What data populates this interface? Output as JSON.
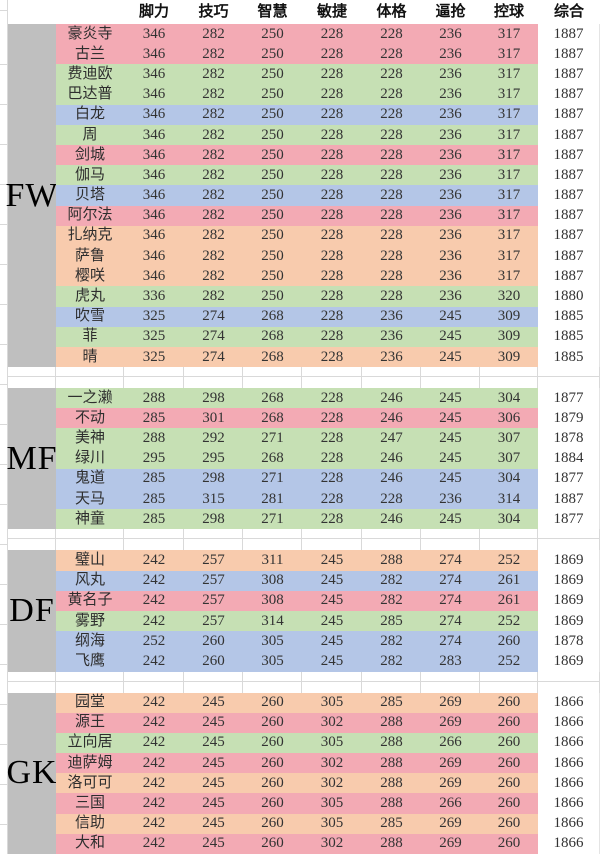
{
  "header": {
    "columns": [
      "脚力",
      "技巧",
      "智慧",
      "敏捷",
      "体格",
      "逼抢",
      "控球",
      "综合"
    ]
  },
  "colors": {
    "pink": "#f3aab4",
    "green": "#c6e0b4",
    "blue": "#b4c6e7",
    "orange": "#f8cbad",
    "gray": "#bfbfbf",
    "gridline": "#d9d9d9"
  },
  "sections": [
    {
      "label": "FW",
      "rows": [
        {
          "name": "豪炎寺",
          "color": "pink",
          "values": [
            346,
            282,
            250,
            228,
            228,
            236,
            317
          ],
          "total": 1887
        },
        {
          "name": "古兰",
          "color": "pink",
          "values": [
            346,
            282,
            250,
            228,
            228,
            236,
            317
          ],
          "total": 1887
        },
        {
          "name": "费迪欧",
          "color": "green",
          "values": [
            346,
            282,
            250,
            228,
            228,
            236,
            317
          ],
          "total": 1887
        },
        {
          "name": "巴达普",
          "color": "green",
          "values": [
            346,
            282,
            250,
            228,
            228,
            236,
            317
          ],
          "total": 1887
        },
        {
          "name": "白龙",
          "color": "blue",
          "values": [
            346,
            282,
            250,
            228,
            228,
            236,
            317
          ],
          "total": 1887
        },
        {
          "name": "周",
          "color": "green",
          "values": [
            346,
            282,
            250,
            228,
            228,
            236,
            317
          ],
          "total": 1887
        },
        {
          "name": "剑城",
          "color": "pink",
          "values": [
            346,
            282,
            250,
            228,
            228,
            236,
            317
          ],
          "total": 1887
        },
        {
          "name": "伽马",
          "color": "green",
          "values": [
            346,
            282,
            250,
            228,
            228,
            236,
            317
          ],
          "total": 1887
        },
        {
          "name": "贝塔",
          "color": "blue",
          "values": [
            346,
            282,
            250,
            228,
            228,
            236,
            317
          ],
          "total": 1887
        },
        {
          "name": "阿尔法",
          "color": "pink",
          "values": [
            346,
            282,
            250,
            228,
            228,
            236,
            317
          ],
          "total": 1887
        },
        {
          "name": "扎纳克",
          "color": "orange",
          "values": [
            346,
            282,
            250,
            228,
            228,
            236,
            317
          ],
          "total": 1887
        },
        {
          "name": "萨鲁",
          "color": "orange",
          "values": [
            346,
            282,
            250,
            228,
            228,
            236,
            317
          ],
          "total": 1887
        },
        {
          "name": "樱咲",
          "color": "orange",
          "values": [
            346,
            282,
            250,
            228,
            228,
            236,
            317
          ],
          "total": 1887
        },
        {
          "name": "虎丸",
          "color": "green",
          "values": [
            336,
            282,
            250,
            228,
            228,
            236,
            320
          ],
          "total": 1880
        },
        {
          "name": "吹雪",
          "color": "blue",
          "values": [
            325,
            274,
            268,
            228,
            236,
            245,
            309
          ],
          "total": 1885
        },
        {
          "name": "菲",
          "color": "green",
          "values": [
            325,
            274,
            268,
            228,
            236,
            245,
            309
          ],
          "total": 1885
        },
        {
          "name": "晴",
          "color": "orange",
          "values": [
            325,
            274,
            268,
            228,
            236,
            245,
            309
          ],
          "total": 1885
        }
      ]
    },
    {
      "label": "MF",
      "rows": [
        {
          "name": "一之濑",
          "color": "green",
          "values": [
            288,
            298,
            268,
            228,
            246,
            245,
            304
          ],
          "total": 1877
        },
        {
          "name": "不动",
          "color": "pink",
          "values": [
            285,
            301,
            268,
            228,
            246,
            245,
            306
          ],
          "total": 1879
        },
        {
          "name": "美神",
          "color": "green",
          "values": [
            288,
            292,
            271,
            228,
            247,
            245,
            307
          ],
          "total": 1878
        },
        {
          "name": "绿川",
          "color": "green",
          "values": [
            295,
            295,
            268,
            228,
            246,
            245,
            307
          ],
          "total": 1884
        },
        {
          "name": "鬼道",
          "color": "blue",
          "values": [
            285,
            298,
            271,
            228,
            246,
            245,
            304
          ],
          "total": 1877
        },
        {
          "name": "天马",
          "color": "blue",
          "values": [
            285,
            315,
            281,
            228,
            228,
            236,
            314
          ],
          "total": 1887
        },
        {
          "name": "神童",
          "color": "green",
          "values": [
            285,
            298,
            271,
            228,
            246,
            245,
            304
          ],
          "total": 1877
        }
      ]
    },
    {
      "label": "DF",
      "rows": [
        {
          "name": "璧山",
          "color": "orange",
          "values": [
            242,
            257,
            311,
            245,
            288,
            274,
            252
          ],
          "total": 1869
        },
        {
          "name": "风丸",
          "color": "blue",
          "values": [
            242,
            257,
            308,
            245,
            282,
            274,
            261
          ],
          "total": 1869
        },
        {
          "name": "黄名子",
          "color": "pink",
          "values": [
            242,
            257,
            308,
            245,
            282,
            274,
            261
          ],
          "total": 1869
        },
        {
          "name": "雾野",
          "color": "green",
          "values": [
            242,
            257,
            314,
            245,
            285,
            274,
            252
          ],
          "total": 1869
        },
        {
          "name": "纲海",
          "color": "blue",
          "values": [
            252,
            260,
            305,
            245,
            282,
            274,
            260
          ],
          "total": 1878
        },
        {
          "name": "飞鹰",
          "color": "blue",
          "values": [
            242,
            260,
            305,
            245,
            282,
            283,
            252
          ],
          "total": 1869
        }
      ]
    },
    {
      "label": "GK",
      "rows": [
        {
          "name": "园堂",
          "color": "orange",
          "values": [
            242,
            245,
            260,
            305,
            285,
            269,
            260
          ],
          "total": 1866
        },
        {
          "name": "源王",
          "color": "pink",
          "values": [
            242,
            245,
            260,
            302,
            288,
            269,
            260
          ],
          "total": 1866
        },
        {
          "name": "立向居",
          "color": "green",
          "values": [
            242,
            245,
            260,
            305,
            288,
            266,
            260
          ],
          "total": 1866
        },
        {
          "name": "迪萨姆",
          "color": "pink",
          "values": [
            242,
            245,
            260,
            302,
            288,
            269,
            260
          ],
          "total": 1866
        },
        {
          "name": "洛可可",
          "color": "orange",
          "values": [
            242,
            245,
            260,
            302,
            288,
            269,
            260
          ],
          "total": 1866
        },
        {
          "name": "三国",
          "color": "pink",
          "values": [
            242,
            245,
            260,
            305,
            288,
            266,
            260
          ],
          "total": 1866
        },
        {
          "name": "信助",
          "color": "orange",
          "values": [
            242,
            245,
            260,
            305,
            285,
            269,
            260
          ],
          "total": 1866
        },
        {
          "name": "大和",
          "color": "pink",
          "values": [
            242,
            245,
            260,
            302,
            288,
            269,
            260
          ],
          "total": 1866
        }
      ]
    }
  ]
}
